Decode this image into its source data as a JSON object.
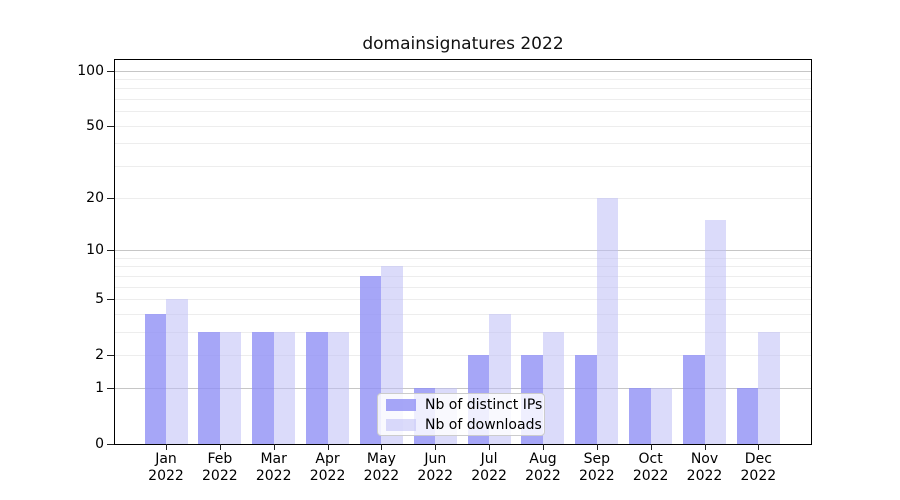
{
  "title": "domainsignatures 2022",
  "chart_data": {
    "type": "bar",
    "title": "domainsignatures 2022",
    "xlabel": "",
    "ylabel": "",
    "categories": [
      "Jan 2022",
      "Feb 2022",
      "Mar 2022",
      "Apr 2022",
      "May 2022",
      "Jun 2022",
      "Jul 2022",
      "Aug 2022",
      "Sep 2022",
      "Oct 2022",
      "Nov 2022",
      "Dec 2022"
    ],
    "series": [
      {
        "name": "Nb of distinct IPs",
        "color": "rgba(144,144,245,0.80)",
        "color_hex": "#a6a6f6",
        "values": [
          4,
          3,
          3,
          3,
          7,
          1,
          2,
          2,
          2,
          1,
          2,
          1
        ]
      },
      {
        "name": "Nb of downloads",
        "color": "rgba(190,190,245,0.55)",
        "color_hex": "#d9d9f9",
        "values": [
          5,
          3,
          3,
          3,
          8,
          1,
          4,
          3,
          20,
          1,
          15,
          3
        ]
      }
    ],
    "yscale": "log1p",
    "ylim": [
      0,
      114
    ],
    "yticks": [
      0,
      1,
      2,
      5,
      10,
      20,
      50,
      100
    ],
    "decade_gridlines": [
      1,
      10,
      100
    ],
    "minor_gridlines": [
      2,
      3,
      4,
      5,
      6,
      7,
      8,
      9,
      20,
      30,
      40,
      50,
      60,
      70,
      80,
      90
    ],
    "grid": true,
    "legend_position": "lower center",
    "axis_color": "#000000",
    "decade_grid_color": "#c6c6c6",
    "minor_grid_color": "#ededed"
  }
}
